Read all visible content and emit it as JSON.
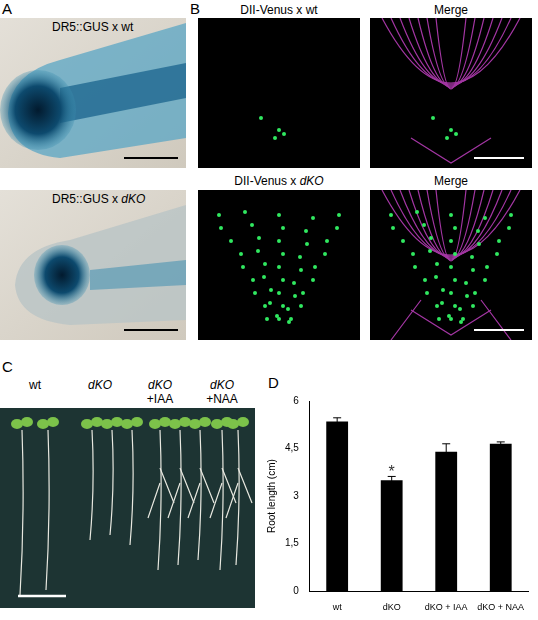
{
  "figure": {
    "A": {
      "label": "A",
      "captions": [
        "DR5::GUS x wt",
        "DR5::GUS x dKO"
      ]
    },
    "B": {
      "label": "B",
      "captions": [
        "DII-Venus x wt",
        "Merge",
        "DII-Venus x dKO",
        "Merge"
      ]
    },
    "C": {
      "label": "C",
      "captions": [
        "wt",
        "dKO",
        "dKO +IAA",
        "dKO +NAA"
      ]
    },
    "D": {
      "label": "D"
    }
  },
  "chart_data": {
    "type": "bar",
    "categories": [
      "wt",
      "dKO",
      "dKO + IAA",
      "dKO + NAA"
    ],
    "values": [
      5.35,
      3.5,
      4.4,
      4.65
    ],
    "errors": [
      0.12,
      0.12,
      0.25,
      0.06
    ],
    "color": "#000000",
    "ylabel": "Root length (cm)",
    "ylim": [
      0,
      6
    ],
    "yticks": [
      0,
      {
        "value": 1.5,
        "label": "1,5"
      },
      3,
      {
        "value": 4.5,
        "label": "4,5"
      },
      6
    ],
    "grid": false,
    "annotations": [
      {
        "category": "dKO",
        "text": "*"
      }
    ]
  }
}
